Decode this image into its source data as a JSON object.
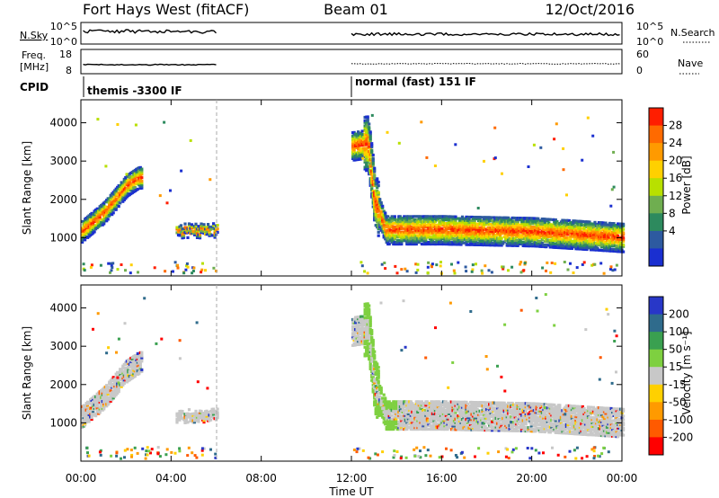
{
  "header": {
    "station": "Fort Hays West (fitACF)",
    "beam": "Beam 01",
    "date": "12/Oct/2016"
  },
  "summary_panels": {
    "noise": {
      "left_label": "N.Sky",
      "right_label": "N.Search",
      "left_ticks": [
        "10^5",
        "10^0"
      ],
      "right_ticks": [
        "10^5",
        "10^0"
      ]
    },
    "freq": {
      "left_label_line1": "Freq.",
      "left_label_line2": "[MHz]",
      "right_label": "Nave",
      "left_ticks": [
        "18",
        "8"
      ],
      "right_ticks": [
        "60",
        "0"
      ]
    },
    "cpid": {
      "label": "CPID",
      "modes": [
        "themis -3300 IF",
        "normal (fast) 151 IF"
      ]
    }
  },
  "axes": {
    "ylabel": "Slant Range [km]",
    "xlabel": "Time UT",
    "yticks": [
      "1000",
      "2000",
      "3000",
      "4000"
    ],
    "xticks": [
      "00:00",
      "04:00",
      "08:00",
      "12:00",
      "16:00",
      "20:00",
      "00:00"
    ]
  },
  "colorbars": {
    "power": {
      "label": "Power [dB]",
      "ticks": [
        "28",
        "24",
        "20",
        "16",
        "12",
        "8",
        "4"
      ],
      "colors": [
        "#ff1e00",
        "#ff6a00",
        "#ff9a00",
        "#ffd000",
        "#b8e000",
        "#6fae50",
        "#2d8a5e",
        "#2d5aa0",
        "#1a2fd0"
      ]
    },
    "velocity": {
      "label": "Velocity [m s⁻¹]",
      "ticks": [
        "200",
        "100",
        "50",
        "15",
        "-15",
        "-50",
        "-100",
        "-200"
      ],
      "colors": [
        "#2837c8",
        "#2f6b8c",
        "#3aa050",
        "#7ed040",
        "#c8c8c8",
        "#ffd000",
        "#ff9a00",
        "#ff5a00",
        "#ff0000"
      ]
    }
  },
  "chart_data": {
    "type": "heatmap",
    "title": "Fort Hays West (fitACF)",
    "xlabel": "Time UT",
    "ylabel": "Slant Range [km]",
    "xlim": [
      0,
      24
    ],
    "ylim": [
      0,
      4600
    ],
    "data_gaps_hours": [
      [
        6.0,
        12.0
      ]
    ],
    "series": [
      {
        "name": "Power [dB]",
        "echo_band_center_km": [
          [
            0.0,
            1200
          ],
          [
            1.0,
            1700
          ],
          [
            2.0,
            2400
          ],
          [
            2.5,
            2600
          ],
          [
            12.7,
            3500
          ],
          [
            13.0,
            2000
          ],
          [
            13.5,
            1250
          ],
          [
            16.0,
            1250
          ],
          [
            20.0,
            1200
          ],
          [
            24.0,
            1050
          ]
        ],
        "peak_power_db": 28
      },
      {
        "name": "Velocity [m s⁻¹]",
        "echo_band_center_km": [
          [
            0.0,
            1200
          ],
          [
            1.0,
            1700
          ],
          [
            2.0,
            2400
          ],
          [
            2.5,
            2600
          ],
          [
            12.7,
            3500
          ],
          [
            13.0,
            2000
          ],
          [
            13.5,
            1250
          ],
          [
            16.0,
            1250
          ],
          [
            20.0,
            1200
          ],
          [
            24.0,
            1050
          ]
        ],
        "dominant_velocity_range": [
          -15,
          15
        ]
      }
    ]
  }
}
